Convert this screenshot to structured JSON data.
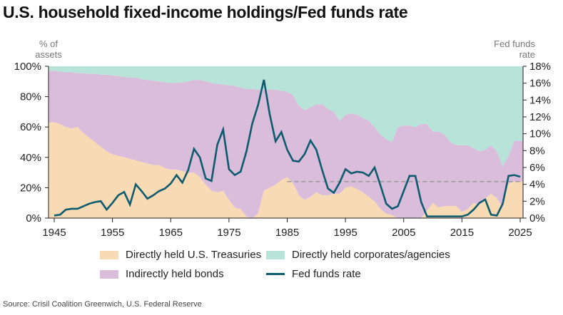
{
  "chart_data": {
    "type": "area",
    "title": "U.S. household fixed-income holdings/Fed funds rate",
    "ylabel": "% of assets",
    "y2label": "Fed funds rate",
    "xlim": [
      1945,
      2025
    ],
    "ylim": [
      0,
      100
    ],
    "y2lim": [
      0,
      18
    ],
    "x_ticks": [
      "1945",
      "1955",
      "1965",
      "1975",
      "1985",
      "1995",
      "2005",
      "2015",
      "2025"
    ],
    "y_ticks": [
      "0%",
      "20%",
      "40%",
      "60%",
      "80%",
      "100%"
    ],
    "y2_ticks": [
      "0%",
      "2%",
      "4%",
      "6%",
      "8%",
      "10%",
      "12%",
      "14%",
      "16%",
      "18%"
    ],
    "x_start": 1945,
    "series": [
      {
        "name": "Directly held U.S. Treasuries",
        "kind": "stacked-area",
        "color": "#f8dbb4",
        "values": [
          63,
          62,
          60,
          59,
          60,
          56,
          53,
          50,
          47,
          44,
          42,
          41,
          40,
          39,
          38,
          37,
          36,
          35,
          35,
          33,
          32,
          32,
          31,
          30,
          30,
          27,
          22,
          18,
          17,
          18,
          12,
          7,
          6,
          1,
          0,
          3,
          18,
          20,
          22,
          25,
          27,
          23,
          15,
          12,
          14,
          17,
          15,
          15,
          16,
          16,
          20,
          21,
          19,
          17,
          14,
          11,
          6,
          3,
          2,
          0,
          0,
          0,
          0,
          0,
          5,
          10,
          7,
          8,
          8,
          8,
          4,
          6,
          10,
          9,
          13,
          16,
          13,
          7,
          23,
          24,
          24
        ]
      },
      {
        "name": "Indirectly held bonds",
        "kind": "stacked-area",
        "color": "#d9bddb",
        "values": [
          34,
          34.5,
          36,
          37,
          35.5,
          39.5,
          42,
          45,
          47.5,
          50.5,
          52,
          52.5,
          53,
          53.5,
          54.5,
          54.5,
          55,
          55.5,
          55,
          56.5,
          57,
          57,
          58.5,
          60,
          61,
          64,
          68,
          71,
          71.5,
          70,
          75.5,
          80,
          80,
          84,
          85,
          81.5,
          66.5,
          64.5,
          62.5,
          59,
          56,
          58,
          59,
          59,
          59,
          58,
          60,
          57,
          54,
          48,
          48,
          48,
          49,
          49,
          50,
          49,
          49,
          49,
          48,
          60,
          61,
          61,
          60,
          62,
          57,
          47,
          50,
          47,
          42,
          40,
          44,
          42,
          36,
          35,
          32,
          32,
          31,
          27,
          18,
          27,
          27
        ]
      },
      {
        "name": "Directly held corporates/agencies",
        "kind": "stacked-area",
        "color": "#b7e3d9",
        "values": [
          3,
          3.5,
          4,
          4,
          4.5,
          4.5,
          5,
          5,
          5.5,
          5.5,
          6,
          6.5,
          7,
          7.5,
          7.5,
          8.5,
          9,
          9.5,
          10,
          10.5,
          11,
          11,
          10.5,
          10,
          9,
          9,
          10,
          11,
          11.5,
          12,
          12.5,
          13,
          14,
          15,
          15,
          15.5,
          15.5,
          15.5,
          15.5,
          16,
          17,
          19,
          26,
          29,
          27,
          25,
          25,
          28,
          30,
          36,
          32,
          31,
          32,
          34,
          36,
          40,
          45,
          48,
          50,
          40,
          39,
          39,
          40,
          38,
          38,
          43,
          43,
          45,
          50,
          52,
          52,
          52,
          54,
          56,
          55,
          52,
          56,
          66,
          59,
          49,
          49
        ]
      },
      {
        "name": "Fed funds rate",
        "kind": "line",
        "axis": "right",
        "color": "#0e5a6e",
        "values": [
          0.3,
          0.4,
          1.0,
          1.1,
          1.1,
          1.4,
          1.7,
          1.9,
          2.0,
          1.0,
          1.8,
          2.7,
          3.1,
          1.6,
          4.0,
          3.2,
          2.3,
          2.7,
          3.2,
          3.5,
          4.1,
          5.1,
          4.2,
          5.7,
          8.2,
          7.2,
          4.7,
          4.4,
          8.7,
          10.5,
          5.8,
          5.1,
          5.5,
          7.9,
          11.2,
          13.4,
          16.4,
          12.3,
          9.1,
          10.2,
          8.1,
          6.8,
          6.7,
          7.6,
          9.2,
          8.1,
          5.7,
          3.5,
          3.0,
          4.2,
          5.8,
          5.3,
          5.5,
          5.4,
          5.0,
          6.0,
          3.9,
          1.7,
          1.1,
          1.4,
          3.2,
          5.0,
          5.0,
          1.9,
          0.2,
          0.2,
          0.2,
          0.2,
          0.2,
          0.2,
          0.2,
          0.4,
          1.0,
          1.8,
          2.2,
          0.4,
          0.3,
          1.7,
          5.0,
          5.1,
          4.9
        ]
      }
    ],
    "reference_line": {
      "axis": "right",
      "value": 4.33,
      "from": 1985,
      "to": 2025,
      "style": "dashed",
      "color": "#999999"
    },
    "legend": [
      "Directly held U.S. Treasuries",
      "Directly held corporates/agencies",
      "Indirectly held bonds",
      "Fed funds rate"
    ],
    "legend_position": "bottom",
    "grid": false
  },
  "labels": {
    "left_axis_title": "% of assets",
    "right_axis_title": "Fed funds rate",
    "source": "Source: Crisil Coalition Greenwich, U.S. Federal Reserve"
  }
}
